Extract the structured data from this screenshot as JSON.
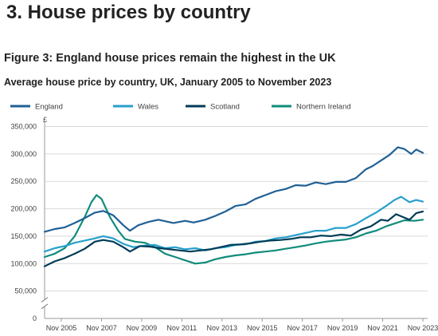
{
  "section_heading": "3.  House prices by country",
  "figure_title": "Figure 3: England house prices remain the highest in the UK",
  "figure_subtitle": "Average house price by country, UK, January 2005 to November 2023",
  "chart_data": {
    "type": "line",
    "title": "Average house price by country, UK, January 2005 to November 2023",
    "xlabel": "",
    "ylabel": "£",
    "ylim": [
      0,
      350000
    ],
    "y_axis_break": true,
    "yticks": [
      0,
      50000,
      100000,
      150000,
      200000,
      250000,
      300000,
      350000
    ],
    "ytick_labels": [
      "0",
      "50,000",
      "100,000",
      "150,000",
      "200,000",
      "250,000",
      "300,000",
      "350,000"
    ],
    "xticks": [
      "Nov 2005",
      "Nov 2007",
      "Nov 2009",
      "Nov 2011",
      "Nov 2013",
      "Nov 2015",
      "Nov 2017",
      "Nov 2019",
      "Nov 2021",
      "Nov 2023"
    ],
    "xlim": [
      "2005-01",
      "2023-11"
    ],
    "grid": "horizontal",
    "legend_position": "top",
    "series": [
      {
        "name": "England",
        "color": "#206095",
        "points": [
          [
            "2005-01",
            158000
          ],
          [
            "2005-07",
            163000
          ],
          [
            "2006-01",
            166000
          ],
          [
            "2006-07",
            174000
          ],
          [
            "2007-01",
            183000
          ],
          [
            "2007-07",
            193000
          ],
          [
            "2007-12",
            196000
          ],
          [
            "2008-06",
            188000
          ],
          [
            "2008-12",
            170000
          ],
          [
            "2009-04",
            160000
          ],
          [
            "2009-09",
            170000
          ],
          [
            "2010-03",
            176000
          ],
          [
            "2010-09",
            180000
          ],
          [
            "2011-06",
            174000
          ],
          [
            "2012-01",
            178000
          ],
          [
            "2012-06",
            175000
          ],
          [
            "2013-01",
            180000
          ],
          [
            "2013-07",
            187000
          ],
          [
            "2014-01",
            195000
          ],
          [
            "2014-07",
            205000
          ],
          [
            "2015-01",
            208000
          ],
          [
            "2015-07",
            218000
          ],
          [
            "2016-01",
            225000
          ],
          [
            "2016-07",
            232000
          ],
          [
            "2017-01",
            236000
          ],
          [
            "2017-07",
            243000
          ],
          [
            "2018-01",
            242000
          ],
          [
            "2018-07",
            248000
          ],
          [
            "2019-01",
            245000
          ],
          [
            "2019-07",
            249000
          ],
          [
            "2020-01",
            249000
          ],
          [
            "2020-07",
            256000
          ],
          [
            "2021-01",
            272000
          ],
          [
            "2021-05",
            278000
          ],
          [
            "2021-10",
            288000
          ],
          [
            "2022-03",
            298000
          ],
          [
            "2022-08",
            312000
          ],
          [
            "2022-12",
            309000
          ],
          [
            "2023-04",
            300000
          ],
          [
            "2023-07",
            308000
          ],
          [
            "2023-11",
            302000
          ]
        ]
      },
      {
        "name": "Wales",
        "color": "#27a0cc",
        "points": [
          [
            "2005-01",
            122000
          ],
          [
            "2005-07",
            128000
          ],
          [
            "2006-01",
            132000
          ],
          [
            "2006-07",
            138000
          ],
          [
            "2007-01",
            142000
          ],
          [
            "2007-07",
            146000
          ],
          [
            "2007-12",
            150000
          ],
          [
            "2008-06",
            146000
          ],
          [
            "2008-12",
            136000
          ],
          [
            "2009-06",
            130000
          ],
          [
            "2010-01",
            133000
          ],
          [
            "2010-07",
            134000
          ],
          [
            "2011-01",
            128000
          ],
          [
            "2011-07",
            130000
          ],
          [
            "2012-01",
            126000
          ],
          [
            "2012-07",
            128000
          ],
          [
            "2013-01",
            124000
          ],
          [
            "2013-07",
            128000
          ],
          [
            "2014-01",
            130000
          ],
          [
            "2014-07",
            134000
          ],
          [
            "2015-01",
            135000
          ],
          [
            "2015-07",
            140000
          ],
          [
            "2016-01",
            141000
          ],
          [
            "2016-07",
            146000
          ],
          [
            "2017-01",
            148000
          ],
          [
            "2017-07",
            152000
          ],
          [
            "2018-01",
            156000
          ],
          [
            "2018-07",
            160000
          ],
          [
            "2019-01",
            160000
          ],
          [
            "2019-07",
            165000
          ],
          [
            "2020-01",
            165000
          ],
          [
            "2020-07",
            172000
          ],
          [
            "2021-01",
            183000
          ],
          [
            "2021-07",
            193000
          ],
          [
            "2022-01",
            205000
          ],
          [
            "2022-06",
            216000
          ],
          [
            "2022-10",
            222000
          ],
          [
            "2023-03",
            212000
          ],
          [
            "2023-07",
            216000
          ],
          [
            "2023-11",
            213000
          ]
        ]
      },
      {
        "name": "Scotland",
        "color": "#003c57",
        "points": [
          [
            "2005-01",
            95000
          ],
          [
            "2005-07",
            104000
          ],
          [
            "2006-01",
            110000
          ],
          [
            "2006-07",
            118000
          ],
          [
            "2007-01",
            127000
          ],
          [
            "2007-07",
            140000
          ],
          [
            "2007-12",
            143000
          ],
          [
            "2008-06",
            140000
          ],
          [
            "2008-12",
            130000
          ],
          [
            "2009-04",
            122000
          ],
          [
            "2009-10",
            132000
          ],
          [
            "2010-04",
            131000
          ],
          [
            "2010-10",
            128000
          ],
          [
            "2011-04",
            126000
          ],
          [
            "2011-10",
            124000
          ],
          [
            "2012-04",
            122000
          ],
          [
            "2012-10",
            124000
          ],
          [
            "2013-04",
            126000
          ],
          [
            "2013-10",
            130000
          ],
          [
            "2014-04",
            134000
          ],
          [
            "2014-10",
            135000
          ],
          [
            "2015-04",
            137000
          ],
          [
            "2015-10",
            140000
          ],
          [
            "2016-04",
            142000
          ],
          [
            "2016-10",
            143000
          ],
          [
            "2017-04",
            145000
          ],
          [
            "2017-10",
            148000
          ],
          [
            "2018-04",
            148000
          ],
          [
            "2018-10",
            151000
          ],
          [
            "2019-04",
            150000
          ],
          [
            "2019-10",
            153000
          ],
          [
            "2020-04",
            151000
          ],
          [
            "2020-10",
            162000
          ],
          [
            "2021-04",
            168000
          ],
          [
            "2021-10",
            180000
          ],
          [
            "2022-02",
            178000
          ],
          [
            "2022-07",
            190000
          ],
          [
            "2022-11",
            185000
          ],
          [
            "2023-03",
            180000
          ],
          [
            "2023-07",
            192000
          ],
          [
            "2023-11",
            195000
          ]
        ]
      },
      {
        "name": "Northern Ireland",
        "color": "#118c7b",
        "points": [
          [
            "2005-01",
            112000
          ],
          [
            "2005-07",
            118000
          ],
          [
            "2006-01",
            128000
          ],
          [
            "2006-07",
            150000
          ],
          [
            "2007-01",
            185000
          ],
          [
            "2007-05",
            212000
          ],
          [
            "2007-08",
            225000
          ],
          [
            "2007-11",
            218000
          ],
          [
            "2008-04",
            185000
          ],
          [
            "2008-09",
            160000
          ],
          [
            "2009-01",
            145000
          ],
          [
            "2009-07",
            140000
          ],
          [
            "2010-01",
            138000
          ],
          [
            "2010-07",
            130000
          ],
          [
            "2011-01",
            118000
          ],
          [
            "2011-07",
            112000
          ],
          [
            "2012-01",
            106000
          ],
          [
            "2012-07",
            100000
          ],
          [
            "2013-01",
            102000
          ],
          [
            "2013-07",
            108000
          ],
          [
            "2014-01",
            112000
          ],
          [
            "2014-07",
            115000
          ],
          [
            "2015-01",
            117000
          ],
          [
            "2015-07",
            120000
          ],
          [
            "2016-01",
            122000
          ],
          [
            "2016-07",
            124000
          ],
          [
            "2017-01",
            127000
          ],
          [
            "2017-07",
            130000
          ],
          [
            "2018-01",
            133000
          ],
          [
            "2018-07",
            137000
          ],
          [
            "2019-01",
            140000
          ],
          [
            "2019-07",
            142000
          ],
          [
            "2020-01",
            144000
          ],
          [
            "2020-07",
            148000
          ],
          [
            "2021-01",
            155000
          ],
          [
            "2021-07",
            160000
          ],
          [
            "2022-01",
            168000
          ],
          [
            "2022-07",
            174000
          ],
          [
            "2022-12",
            179000
          ],
          [
            "2023-06",
            178000
          ],
          [
            "2023-11",
            180000
          ]
        ]
      }
    ]
  }
}
